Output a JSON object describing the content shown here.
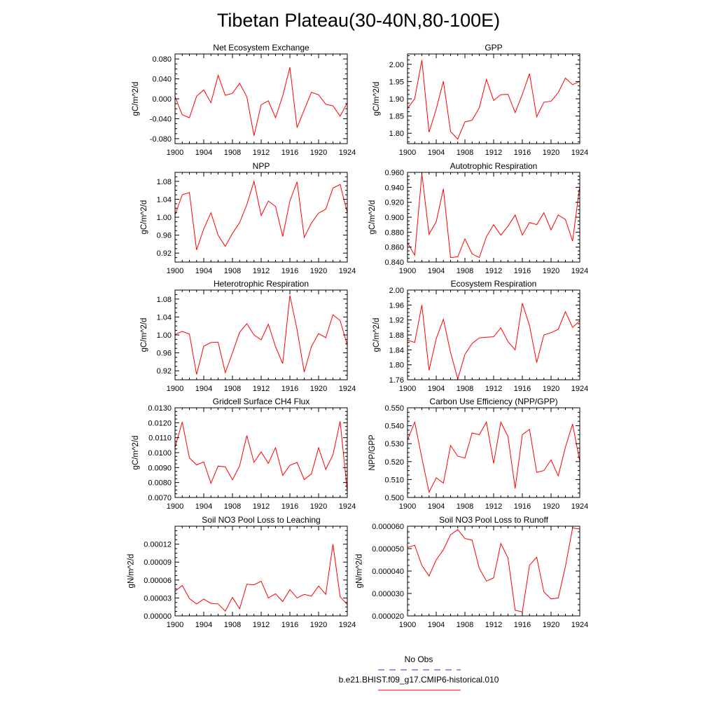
{
  "title": "Tibetan Plateau(30-40N,80-100E)",
  "colors": {
    "model": "#ff0000",
    "obs": "#3333cc",
    "axes": "#000000"
  },
  "legend": {
    "items": [
      {
        "label": "No Obs",
        "color": "#3333cc",
        "dash": true
      },
      {
        "label": "b.e21.BHIST.f09_g17.CMIP6-historical.010",
        "color": "#ff0000",
        "dash": false
      }
    ]
  },
  "chart_data": [
    {
      "type": "line",
      "title": "Net Ecosystem Exchange",
      "ylabel": "gC/m^2/d",
      "xlim": [
        1900,
        1924
      ],
      "ylim": [
        -0.09,
        0.09
      ],
      "xticks": [
        "1900",
        "1904",
        "1908",
        "1912",
        "1916",
        "1920",
        "1924"
      ],
      "yticks": [
        "-0.080",
        "-0.040",
        "0.000",
        "0.040",
        "0.080"
      ],
      "yticks_num": [
        -0.08,
        -0.04,
        0.0,
        0.04,
        0.08
      ],
      "x": [
        1900,
        1901,
        1902,
        1903,
        1904,
        1905,
        1906,
        1907,
        1908,
        1909,
        1910,
        1911,
        1912,
        1913,
        1914,
        1915,
        1916,
        1917,
        1918,
        1919,
        1920,
        1921,
        1922,
        1923,
        1924
      ],
      "series": [
        {
          "values": [
            0.004,
            -0.032,
            -0.038,
            0.005,
            0.018,
            -0.008,
            0.047,
            0.007,
            0.011,
            0.031,
            0.004,
            -0.074,
            -0.012,
            -0.004,
            -0.038,
            0.006,
            0.063,
            -0.058,
            -0.022,
            0.013,
            0.008,
            -0.011,
            -0.014,
            -0.035,
            -0.008
          ]
        }
      ]
    },
    {
      "type": "line",
      "title": "GPP",
      "ylabel": "gC/m^2/d",
      "xlim": [
        1900,
        1924
      ],
      "ylim": [
        1.77,
        2.03
      ],
      "xticks": [
        "1900",
        "1904",
        "1908",
        "1912",
        "1916",
        "1920",
        "1924"
      ],
      "yticks": [
        "1.80",
        "1.85",
        "1.90",
        "1.95",
        "2.00"
      ],
      "yticks_num": [
        1.8,
        1.85,
        1.9,
        1.95,
        2.0
      ],
      "x": [
        1900,
        1901,
        1902,
        1903,
        1904,
        1905,
        1906,
        1907,
        1908,
        1909,
        1910,
        1911,
        1912,
        1913,
        1914,
        1915,
        1916,
        1917,
        1918,
        1919,
        1920,
        1921,
        1922,
        1923,
        1924
      ],
      "series": [
        {
          "values": [
            1.872,
            1.9,
            2.012,
            1.803,
            1.87,
            1.951,
            1.805,
            1.783,
            1.833,
            1.838,
            1.874,
            1.956,
            1.895,
            1.912,
            1.913,
            1.86,
            1.913,
            1.973,
            1.848,
            1.89,
            1.893,
            1.918,
            1.96,
            1.941,
            1.95
          ]
        }
      ]
    },
    {
      "type": "line",
      "title": "NPP",
      "ylabel": "gC/m^2/d",
      "xlim": [
        1900,
        1924
      ],
      "ylim": [
        0.9,
        1.1
      ],
      "xticks": [
        "1900",
        "1904",
        "1908",
        "1912",
        "1916",
        "1920",
        "1924"
      ],
      "yticks": [
        "0.92",
        "0.96",
        "1.00",
        "1.04",
        "1.08"
      ],
      "yticks_num": [
        0.92,
        0.96,
        1.0,
        1.04,
        1.08
      ],
      "x": [
        1900,
        1901,
        1902,
        1903,
        1904,
        1905,
        1906,
        1907,
        1908,
        1909,
        1910,
        1911,
        1912,
        1913,
        1914,
        1915,
        1916,
        1917,
        1918,
        1919,
        1920,
        1921,
        1922,
        1923,
        1924
      ],
      "series": [
        {
          "values": [
            1.005,
            1.05,
            1.055,
            0.927,
            0.974,
            1.01,
            0.96,
            0.935,
            0.964,
            0.988,
            1.028,
            1.08,
            1.004,
            1.036,
            1.024,
            0.957,
            1.036,
            1.079,
            0.955,
            0.987,
            1.009,
            1.018,
            1.065,
            1.073,
            1.01
          ]
        }
      ]
    },
    {
      "type": "line",
      "title": "Autotrophic Respiration",
      "ylabel": "gC/m^2/d",
      "xlim": [
        1900,
        1924
      ],
      "ylim": [
        0.84,
        0.96
      ],
      "xticks": [
        "1900",
        "1904",
        "1908",
        "1912",
        "1916",
        "1920",
        "1924"
      ],
      "yticks": [
        "0.840",
        "0.860",
        "0.880",
        "0.900",
        "0.920",
        "0.940",
        "0.960"
      ],
      "yticks_num": [
        0.84,
        0.86,
        0.88,
        0.9,
        0.92,
        0.94,
        0.96
      ],
      "x": [
        1900,
        1901,
        1902,
        1903,
        1904,
        1905,
        1906,
        1907,
        1908,
        1909,
        1910,
        1911,
        1912,
        1913,
        1914,
        1915,
        1916,
        1917,
        1918,
        1919,
        1920,
        1921,
        1922,
        1923,
        1924
      ],
      "series": [
        {
          "values": [
            0.866,
            0.849,
            0.958,
            0.877,
            0.894,
            0.938,
            0.846,
            0.847,
            0.871,
            0.851,
            0.846,
            0.874,
            0.89,
            0.876,
            0.888,
            0.903,
            0.876,
            0.893,
            0.89,
            0.906,
            0.883,
            0.903,
            0.897,
            0.868,
            0.942
          ]
        }
      ]
    },
    {
      "type": "line",
      "title": "Heterotrophic Respiration",
      "ylabel": "gC/m^2/d",
      "xlim": [
        1900,
        1924
      ],
      "ylim": [
        0.9,
        1.1
      ],
      "xticks": [
        "1900",
        "1904",
        "1908",
        "1912",
        "1916",
        "1920",
        "1924"
      ],
      "yticks": [
        "0.92",
        "0.96",
        "1.00",
        "1.04",
        "1.08"
      ],
      "yticks_num": [
        0.92,
        0.96,
        1.0,
        1.04,
        1.08
      ],
      "x": [
        1900,
        1901,
        1902,
        1903,
        1904,
        1905,
        1906,
        1907,
        1908,
        1909,
        1910,
        1911,
        1912,
        1913,
        1914,
        1915,
        1916,
        1917,
        1918,
        1919,
        1920,
        1921,
        1922,
        1923,
        1924
      ],
      "series": [
        {
          "values": [
            1.001,
            1.008,
            1.002,
            0.912,
            0.975,
            0.983,
            0.984,
            0.916,
            0.96,
            1.006,
            1.025,
            1.0,
            0.989,
            1.024,
            0.974,
            0.936,
            1.088,
            1.012,
            0.917,
            0.974,
            1.003,
            0.994,
            1.045,
            1.032,
            0.977
          ]
        }
      ]
    },
    {
      "type": "line",
      "title": "Ecosystem Respiration",
      "ylabel": "gC/m^2/d",
      "xlim": [
        1900,
        1924
      ],
      "ylim": [
        1.76,
        2.0
      ],
      "xticks": [
        "1900",
        "1904",
        "1908",
        "1912",
        "1916",
        "1920",
        "1924"
      ],
      "yticks": [
        "1.76",
        "1.80",
        "1.84",
        "1.88",
        "1.92",
        "1.96",
        "2.00"
      ],
      "yticks_num": [
        1.76,
        1.8,
        1.84,
        1.88,
        1.92,
        1.96,
        2.0
      ],
      "x": [
        1900,
        1901,
        1902,
        1903,
        1904,
        1905,
        1906,
        1907,
        1908,
        1909,
        1910,
        1911,
        1912,
        1913,
        1914,
        1915,
        1916,
        1917,
        1918,
        1919,
        1920,
        1921,
        1922,
        1923,
        1924
      ],
      "series": [
        {
          "values": [
            1.866,
            1.86,
            1.96,
            1.785,
            1.87,
            1.922,
            1.833,
            1.762,
            1.828,
            1.857,
            1.872,
            1.874,
            1.875,
            1.899,
            1.862,
            1.84,
            1.965,
            1.905,
            1.806,
            1.88,
            1.886,
            1.895,
            1.942,
            1.9,
            1.918
          ]
        }
      ]
    },
    {
      "type": "line",
      "title": "Gridcell Surface CH4 Flux",
      "ylabel": "gC/m^2/d",
      "xlim": [
        1900,
        1924
      ],
      "ylim": [
        0.007,
        0.013
      ],
      "xticks": [
        "1900",
        "1904",
        "1908",
        "1912",
        "1916",
        "1920",
        "1924"
      ],
      "yticks": [
        "0.0070",
        "0.0080",
        "0.0090",
        "0.0100",
        "0.0110",
        "0.0120",
        "0.0130"
      ],
      "yticks_num": [
        0.007,
        0.008,
        0.009,
        0.01,
        0.011,
        0.012,
        0.013
      ],
      "x": [
        1900,
        1901,
        1902,
        1903,
        1904,
        1905,
        1906,
        1907,
        1908,
        1909,
        1910,
        1911,
        1912,
        1913,
        1914,
        1915,
        1916,
        1917,
        1918,
        1919,
        1920,
        1921,
        1922,
        1923,
        1924
      ],
      "series": [
        {
          "values": [
            0.01035,
            0.01205,
            0.00965,
            0.00918,
            0.00938,
            0.00795,
            0.0091,
            0.00905,
            0.00818,
            0.00912,
            0.01115,
            0.00935,
            0.01005,
            0.00928,
            0.01033,
            0.00848,
            0.00915,
            0.00935,
            0.0082,
            0.00858,
            0.01033,
            0.00888,
            0.00985,
            0.0121,
            0.0074
          ]
        }
      ]
    },
    {
      "type": "line",
      "title": "Carbon Use Efficiency (NPP/GPP)",
      "ylabel": "NPP/GPP",
      "xlim": [
        1900,
        1924
      ],
      "ylim": [
        0.5,
        0.55
      ],
      "xticks": [
        "1900",
        "1904",
        "1908",
        "1912",
        "1916",
        "1920",
        "1924"
      ],
      "yticks": [
        "0.500",
        "0.510",
        "0.520",
        "0.530",
        "0.540",
        "0.550"
      ],
      "yticks_num": [
        0.5,
        0.51,
        0.52,
        0.53,
        0.54,
        0.55
      ],
      "x": [
        1900,
        1901,
        1902,
        1903,
        1904,
        1905,
        1906,
        1907,
        1908,
        1909,
        1910,
        1911,
        1912,
        1913,
        1914,
        1915,
        1916,
        1917,
        1918,
        1919,
        1920,
        1921,
        1922,
        1923,
        1924
      ],
      "series": [
        {
          "values": [
            0.532,
            0.542,
            0.522,
            0.503,
            0.511,
            0.508,
            0.529,
            0.523,
            0.522,
            0.536,
            0.535,
            0.542,
            0.519,
            0.542,
            0.534,
            0.505,
            0.535,
            0.538,
            0.514,
            0.515,
            0.521,
            0.512,
            0.528,
            0.541,
            0.52
          ]
        }
      ]
    },
    {
      "type": "line",
      "title": "Soil NO3 Pool Loss to Leaching",
      "ylabel": "gN/m^2/d",
      "xlim": [
        1900,
        1924
      ],
      "ylim": [
        0.0,
        0.00015
      ],
      "xticks": [
        "1900",
        "1904",
        "1908",
        "1912",
        "1916",
        "1920",
        "1924"
      ],
      "yticks": [
        "0.00000",
        "0.00003",
        "0.00006",
        "0.00009",
        "0.00012"
      ],
      "yticks_num": [
        0.0,
        3e-05,
        6e-05,
        9e-05,
        0.00012
      ],
      "x": [
        1900,
        1901,
        1902,
        1903,
        1904,
        1905,
        1906,
        1907,
        1908,
        1909,
        1910,
        1911,
        1912,
        1913,
        1914,
        1915,
        1916,
        1917,
        1918,
        1919,
        1920,
        1921,
        1922,
        1923,
        1924
      ],
      "series": [
        {
          "values": [
            4.1e-05,
            5.1e-05,
            2.9e-05,
            2e-05,
            2.8e-05,
            2.1e-05,
            2e-05,
            8e-06,
            3.1e-05,
            1.2e-05,
            5.3e-05,
            5.2e-05,
            5.8e-05,
            3e-05,
            3.7e-05,
            2.4e-05,
            4.4e-05,
            3e-05,
            3.6e-05,
            3.3e-05,
            5e-05,
            3.6e-05,
            0.00012,
            3.2e-05,
            1.9e-05
          ]
        }
      ]
    },
    {
      "type": "line",
      "title": "Soil NO3 Pool Loss to Runoff",
      "ylabel": "gN/m^2/d",
      "xlim": [
        1900,
        1924
      ],
      "ylim": [
        2e-05,
        6e-05
      ],
      "xticks": [
        "1900",
        "1904",
        "1908",
        "1912",
        "1916",
        "1920",
        "1924"
      ],
      "yticks": [
        "0.000020",
        "0.000030",
        "0.000040",
        "0.000050",
        "0.000060"
      ],
      "yticks_num": [
        2e-05,
        3e-05,
        4e-05,
        5e-05,
        6e-05
      ],
      "x": [
        1900,
        1901,
        1902,
        1903,
        1904,
        1905,
        1906,
        1907,
        1908,
        1909,
        1910,
        1911,
        1912,
        1913,
        1914,
        1915,
        1916,
        1917,
        1918,
        1919,
        1920,
        1921,
        1922,
        1923,
        1924
      ],
      "series": [
        {
          "values": [
            5.05e-05,
            5.15e-05,
            4.25e-05,
            3.78e-05,
            4.5e-05,
            4.95e-05,
            5.62e-05,
            5.85e-05,
            5.45e-05,
            5.38e-05,
            4.12e-05,
            3.55e-05,
            3.7e-05,
            5.23e-05,
            4.58e-05,
            2.25e-05,
            2.18e-05,
            4.26e-05,
            4.62e-05,
            3.07e-05,
            2.76e-05,
            2.8e-05,
            4.2e-05,
            5.92e-05,
            5.87e-05
          ]
        }
      ]
    }
  ]
}
